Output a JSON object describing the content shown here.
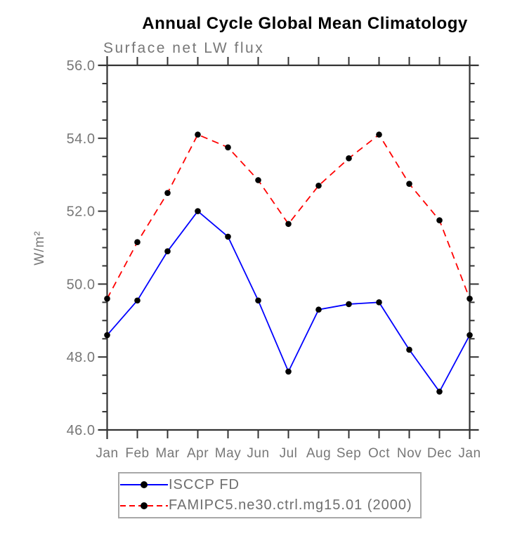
{
  "header": {
    "title": "Annual Cycle Global Mean Climatology",
    "subtitle": "Surface net LW flux"
  },
  "chart_data": {
    "type": "line",
    "title": "Annual Cycle Global Mean Climatology",
    "subtitle": "Surface net LW flux",
    "xlabel": "",
    "ylabel": "W/m²",
    "categories": [
      "Jan",
      "Feb",
      "Mar",
      "Apr",
      "May",
      "Jun",
      "Jul",
      "Aug",
      "Sep",
      "Oct",
      "Nov",
      "Dec",
      "Jan"
    ],
    "series": [
      {
        "id": "isccp-fd",
        "name": "ISCCP FD",
        "color": "#0000ff",
        "line_style": "solid",
        "marker": "circle",
        "values": [
          48.6,
          49.55,
          50.9,
          52.0,
          51.3,
          49.55,
          47.6,
          49.3,
          49.45,
          49.5,
          48.2,
          47.05,
          48.6
        ]
      },
      {
        "id": "famipc5",
        "name": "FAMIPC5.ne30.ctrl.mg15.01 (2000)",
        "color": "#ff0000",
        "line_style": "dashed",
        "marker": "circle",
        "values": [
          49.6,
          51.15,
          52.5,
          54.1,
          53.75,
          52.85,
          51.65,
          52.7,
          53.45,
          54.1,
          52.75,
          51.75,
          49.6
        ]
      }
    ],
    "ylim": [
      46.0,
      56.0
    ],
    "ytick_step": 2.0,
    "yminor_step": 0.5,
    "ytick_labels": [
      "56.0",
      "54.0",
      "52.0",
      "50.0",
      "48.0",
      "46.0"
    ],
    "grid": false,
    "legend_position": "bottom-left",
    "colors": {
      "axis": "#333333",
      "tick_label": "#777777",
      "marker": "#000000"
    }
  }
}
